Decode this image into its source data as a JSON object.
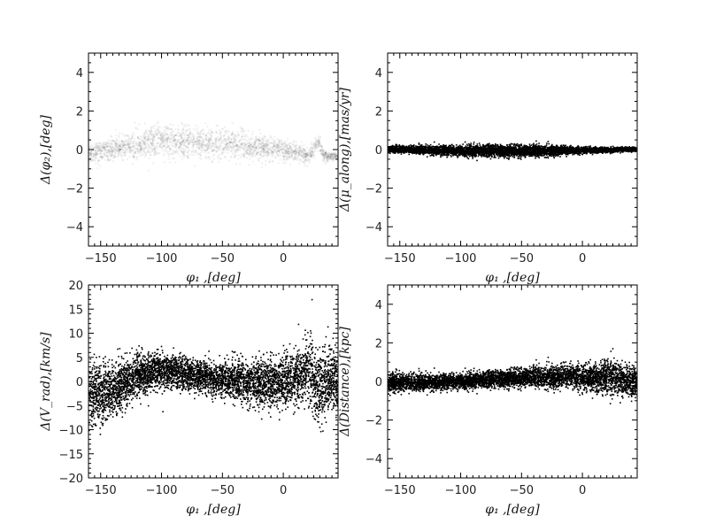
{
  "figure": {
    "background": "#ffffff"
  },
  "chart_data": [
    {
      "id": "phi2",
      "type": "scatter",
      "style": "density",
      "color": "#000000",
      "xlabel": "φ₁ ,[deg]",
      "ylabel": "Δ(φ₂),[deg]",
      "xlim": [
        -160,
        45
      ],
      "ylim": [
        -5,
        5
      ],
      "xticks": [
        -150,
        -100,
        -50,
        0
      ],
      "yticks": [
        -4,
        -2,
        0,
        2,
        4
      ],
      "band": [
        {
          "x": -155,
          "center": -0.1,
          "spread": 0.25
        },
        {
          "x": -130,
          "center": 0.2,
          "spread": 0.35
        },
        {
          "x": -100,
          "center": 0.45,
          "spread": 0.45
        },
        {
          "x": -70,
          "center": 0.4,
          "spread": 0.4
        },
        {
          "x": -40,
          "center": 0.3,
          "spread": 0.35
        },
        {
          "x": -10,
          "center": 0.1,
          "spread": 0.3
        },
        {
          "x": 10,
          "center": -0.1,
          "spread": 0.25
        },
        {
          "x": 20,
          "center": -0.3,
          "spread": 0.2
        },
        {
          "x": 28,
          "center": 0.4,
          "spread": 0.2
        },
        {
          "x": 33,
          "center": -0.3,
          "spread": 0.15
        },
        {
          "x": 43,
          "center": -0.3,
          "spread": 0.1
        }
      ]
    },
    {
      "id": "mu",
      "type": "scatter",
      "style": "points",
      "color": "#000000",
      "xlabel": "φ₁ ,[deg]",
      "ylabel": "Δ(μ_along),[mas/yr]",
      "xlim": [
        -160,
        45
      ],
      "ylim": [
        -5,
        5
      ],
      "xticks": [
        -150,
        -100,
        -50,
        0
      ],
      "yticks": [
        -4,
        -2,
        0,
        2,
        4
      ],
      "band": [
        {
          "x": -160,
          "center": 0.05,
          "spread": 0.08
        },
        {
          "x": -120,
          "center": 0.0,
          "spread": 0.12
        },
        {
          "x": -80,
          "center": -0.05,
          "spread": 0.15
        },
        {
          "x": -40,
          "center": -0.05,
          "spread": 0.15
        },
        {
          "x": 0,
          "center": 0.0,
          "spread": 0.08
        },
        {
          "x": 45,
          "center": 0.05,
          "spread": 0.05
        }
      ]
    },
    {
      "id": "vrad",
      "type": "scatter",
      "style": "points",
      "color": "#000000",
      "xlabel": "φ₁ ,[deg]",
      "ylabel": "Δ(V_rad),[km/s]",
      "xlim": [
        -160,
        45
      ],
      "ylim": [
        -20,
        20
      ],
      "xticks": [
        -150,
        -100,
        -50,
        0
      ],
      "yticks": [
        -20,
        -15,
        -10,
        -5,
        0,
        5,
        10,
        15,
        20
      ],
      "band": [
        {
          "x": -160,
          "center": -2.5,
          "spread": 3.0
        },
        {
          "x": -140,
          "center": -1.5,
          "spread": 2.8
        },
        {
          "x": -120,
          "center": 1.5,
          "spread": 2.2
        },
        {
          "x": -100,
          "center": 2.5,
          "spread": 1.8
        },
        {
          "x": -75,
          "center": 1.5,
          "spread": 1.6
        },
        {
          "x": -50,
          "center": 0.5,
          "spread": 1.8
        },
        {
          "x": -25,
          "center": 0.0,
          "spread": 2.2
        },
        {
          "x": 0,
          "center": 0.0,
          "spread": 2.6
        },
        {
          "x": 15,
          "center": 1.0,
          "spread": 3.0
        },
        {
          "x": 22,
          "center": 3.0,
          "spread": 3.5
        },
        {
          "x": 28,
          "center": -2.0,
          "spread": 3.5
        },
        {
          "x": 35,
          "center": 0.0,
          "spread": 3.5
        },
        {
          "x": 45,
          "center": 0.5,
          "spread": 3.0
        }
      ]
    },
    {
      "id": "dist",
      "type": "scatter",
      "style": "points",
      "color": "#000000",
      "xlabel": "φ₁ ,[deg]",
      "ylabel": "Δ(Distance),[kpc]",
      "xlim": [
        -160,
        45
      ],
      "ylim": [
        -5,
        5
      ],
      "xticks": [
        -150,
        -100,
        -50,
        0
      ],
      "yticks": [
        -4,
        -2,
        0,
        2,
        4
      ],
      "band": [
        {
          "x": -160,
          "center": -0.05,
          "spread": 0.25
        },
        {
          "x": -120,
          "center": 0.0,
          "spread": 0.2
        },
        {
          "x": -80,
          "center": 0.1,
          "spread": 0.2
        },
        {
          "x": -40,
          "center": 0.25,
          "spread": 0.25
        },
        {
          "x": -10,
          "center": 0.3,
          "spread": 0.3
        },
        {
          "x": 10,
          "center": 0.2,
          "spread": 0.35
        },
        {
          "x": 24,
          "center": 0.4,
          "spread": 0.5
        },
        {
          "x": 30,
          "center": 0.1,
          "spread": 0.4
        },
        {
          "x": 45,
          "center": 0.0,
          "spread": 0.35
        }
      ]
    }
  ]
}
